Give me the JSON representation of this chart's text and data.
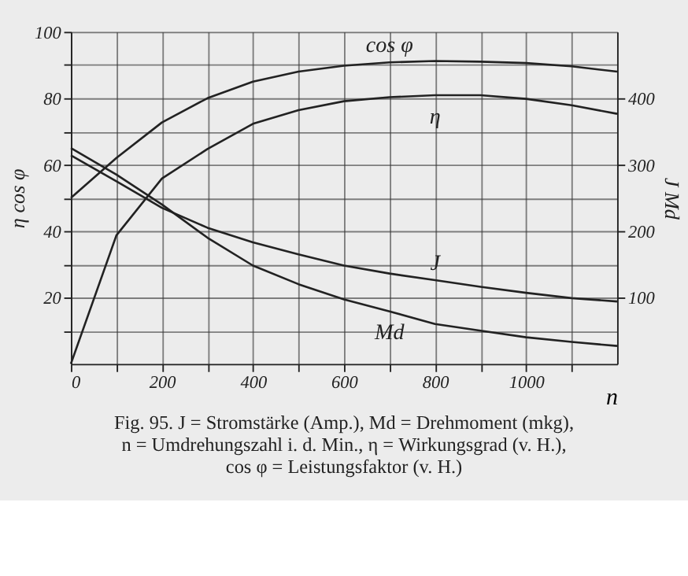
{
  "chart_data": {
    "type": "line",
    "xlabel": "n",
    "ylabel": "η   cos φ",
    "y2label": "J   Md",
    "x": [
      0,
      100,
      200,
      300,
      400,
      500,
      600,
      700,
      800,
      900,
      1000,
      1100,
      1200
    ],
    "xlim": [
      0,
      1200
    ],
    "xticks": [
      0,
      {
        "value": 100,
        "label": null
      },
      200,
      {
        "value": 300,
        "label": null
      },
      400,
      {
        "value": 500,
        "label": null
      },
      600,
      {
        "value": 700,
        "label": null
      },
      800,
      {
        "value": 900,
        "label": null
      },
      1000,
      {
        "value": 1100,
        "label": null
      }
    ],
    "ylim": [
      0,
      100
    ],
    "yticks": [
      {
        "value": 10,
        "label": null
      },
      20,
      {
        "value": 30,
        "label": null
      },
      40,
      {
        "value": 50,
        "label": null
      },
      60,
      {
        "value": 70,
        "label": null
      },
      80,
      {
        "value": 90,
        "label": null
      },
      100
    ],
    "y2lim": [
      0,
      500
    ],
    "y2ticks": [
      100,
      200,
      300,
      400
    ],
    "grid": true,
    "series": [
      {
        "name": "cos φ",
        "color": "#222222",
        "values": [
          50,
          62,
          72.7,
          80,
          85,
          88,
          89.8,
          90.8,
          91.2,
          91,
          90.6,
          89.6,
          88
        ]
      },
      {
        "name": "η",
        "color": "#222222",
        "values": [
          0,
          38.7,
          55.8,
          64.7,
          72.3,
          76.4,
          79.1,
          80.3,
          80.9,
          80.9,
          79.8,
          77.9,
          75.3
        ]
      },
      {
        "name": "J",
        "color": "#222222",
        "axis": "y2",
        "values": [
          314,
          275,
          235,
          205,
          183,
          165,
          148,
          136,
          126,
          116,
          107,
          99,
          94
        ]
      },
      {
        "name": "Md",
        "color": "#222222",
        "axis": "y2",
        "values": [
          325,
          285,
          240,
          190,
          148,
          120,
          97,
          79,
          60,
          50,
          40,
          33,
          27
        ]
      }
    ],
    "annotations": [
      "Fig. 95.  J = Stromstärke (Amp.), Md = Drehmoment (mkg),",
      "n = Umdrehungszahl i. d. Min., η = Wirkungsgrad (v. H.),",
      "cos φ = Leistungsfaktor (v. H.)"
    ]
  }
}
